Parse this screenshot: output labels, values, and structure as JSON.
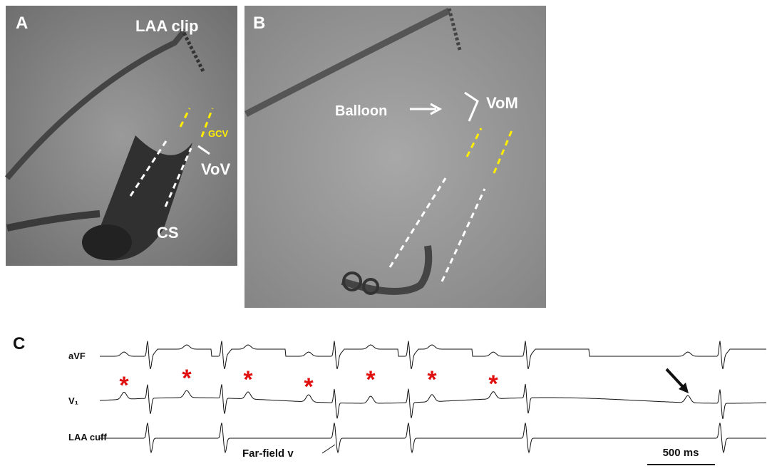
{
  "panels": {
    "a": {
      "label": "A",
      "annotations": [
        "LAA clip",
        "GCV",
        "VoV",
        "CS"
      ]
    },
    "b": {
      "label": "B",
      "annotations": [
        "Balloon",
        "VoM"
      ]
    },
    "c": {
      "label": "C",
      "leads": [
        "aVF",
        "V₁",
        "LAA cuff"
      ],
      "asterisks": [
        "*",
        "*",
        "*",
        "*",
        "*",
        "*",
        "*"
      ],
      "annotation": "Far-field v",
      "scale_bar": "500 ms"
    }
  }
}
